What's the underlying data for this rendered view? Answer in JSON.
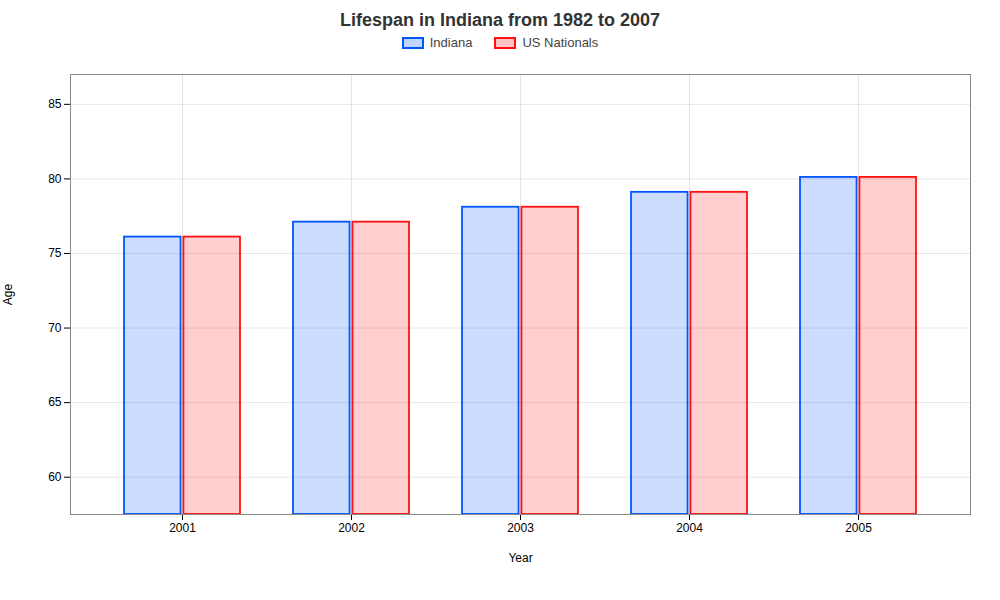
{
  "chart_data": {
    "type": "bar",
    "title": "Lifespan in Indiana from 1982 to 2007",
    "xlabel": "Year",
    "ylabel": "Age",
    "categories": [
      "2001",
      "2002",
      "2003",
      "2004",
      "2005"
    ],
    "series": [
      {
        "name": "Indiana",
        "color": "#0055ff",
        "values": [
          76.1,
          77.1,
          78.1,
          79.1,
          80.1
        ]
      },
      {
        "name": "US Nationals",
        "color": "#ff1111",
        "values": [
          76.1,
          77.1,
          78.1,
          79.1,
          80.1
        ]
      }
    ],
    "ylim": [
      57.5,
      87
    ],
    "yticks": [
      60,
      65,
      70,
      75,
      80,
      85
    ],
    "grid": true,
    "legend": "top"
  }
}
